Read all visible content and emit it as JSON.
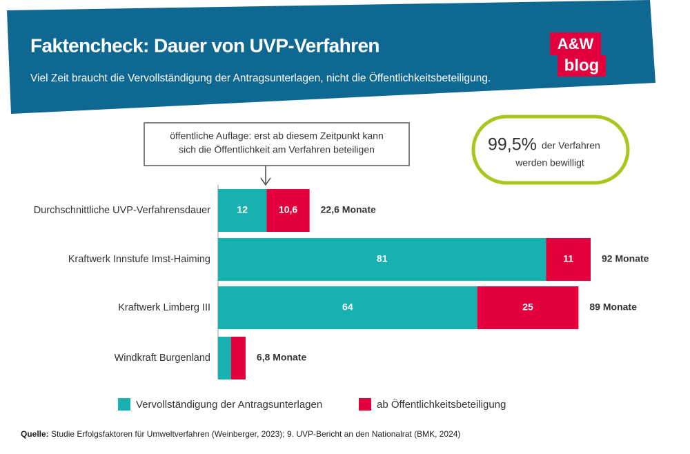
{
  "header": {
    "title": "Faktencheck: Dauer von UVP-Verfahren",
    "subtitle": "Viel Zeit braucht die Vervollständigung der Antragsunterlagen, nicht die Öffentlichkeitsbeteiligung.",
    "logo": [
      "A&W",
      "blog"
    ]
  },
  "chart_data": {
    "type": "stacked-bar-horizontal",
    "categories": [
      "Durchschnittliche UVP-Verfahrensdauer",
      "Kraftwerk Innstufe Imst-Haiming",
      "Kraftwerk Limberg III",
      "Windkraft Burgenland"
    ],
    "series": [
      {
        "name": "Vervollständigung der Antragsunterlagen",
        "color": "#17b2b0",
        "values": [
          12,
          81,
          64,
          3.2
        ],
        "value_labels": [
          "12",
          "81",
          "64",
          null
        ]
      },
      {
        "name": "ab Öffentlichkeitsbeteiligung",
        "color": "#e3003d",
        "values": [
          10.6,
          11,
          25,
          3.6
        ],
        "value_labels": [
          "10,6",
          "11",
          "25",
          null
        ]
      }
    ],
    "totals": {
      "values": [
        22.6,
        92,
        89,
        6.8
      ],
      "value_labels": [
        "22,6 Monate",
        "92 Monate",
        "89 Monate",
        "6,8 Monate"
      ]
    },
    "annotations": {
      "note": [
        "öffentliche Auflage: erst ab diesem Zeitpunkt kann",
        "sich die Öffentlichkeit am Verfahren beteiligen"
      ],
      "callout": {
        "big": "99,5%",
        "lines": [
          "der Verfahren",
          "werden bewilligt"
        ]
      }
    },
    "legend": "bottom"
  },
  "source": {
    "label": "Quelle:",
    "text": "Studie Erfolgsfaktoren für Umweltverfahren (Weinberger, 2023); 9. UVP-Bericht an den Nationalrat (BMK, 2024)"
  }
}
